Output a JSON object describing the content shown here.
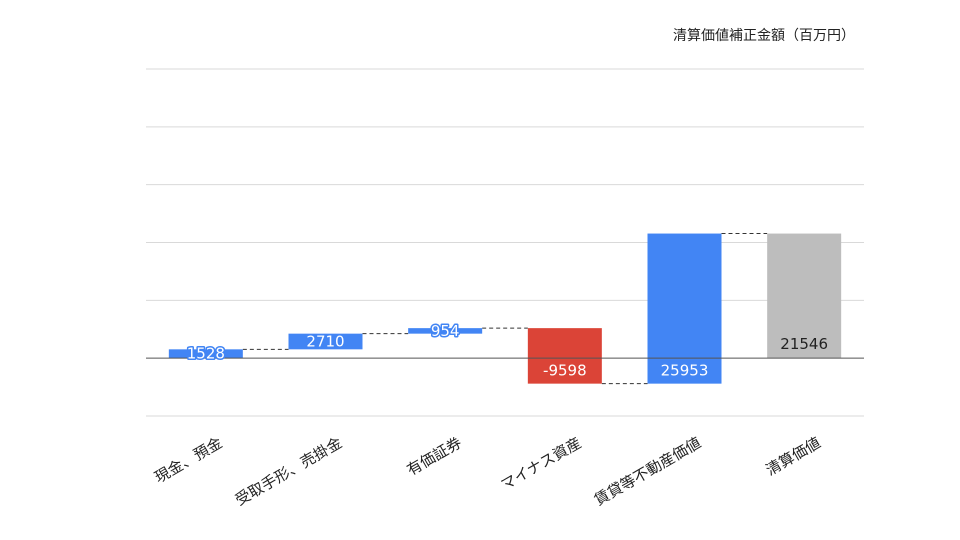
{
  "chart_data": {
    "type": "waterfall",
    "title": "清算価値補正金額（百万円）",
    "xlabel": "",
    "ylabel": "",
    "categories": [
      "現金、預金",
      "受取手形、売掛金",
      "有価証券",
      "マイナス資産",
      "賃貸等不動産価値",
      "清算価値"
    ],
    "values": [
      1528,
      2710,
      954,
      -9598,
      25953,
      21546
    ],
    "kinds": [
      "increase",
      "increase",
      "increase",
      "decrease",
      "increase",
      "total"
    ],
    "ylim": [
      -10000,
      50000
    ],
    "gridlines": [
      -10000,
      0,
      10000,
      20000,
      30000,
      40000,
      50000
    ],
    "tick_labels_shown": false,
    "grid": true,
    "legend": "none",
    "colors": {
      "increase": "#4285f4",
      "decrease": "#db4437",
      "total": "#bdbdbd",
      "grid": "#d9d9d9",
      "baseline": "#555555",
      "connector": "#333333"
    }
  }
}
